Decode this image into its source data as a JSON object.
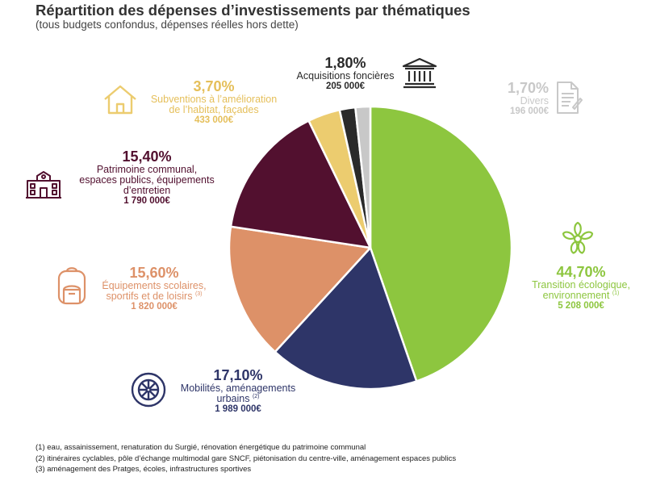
{
  "title": "Répartition des dépenses d’investissements par thématiques",
  "subtitle": "(tous budgets confondus, dépenses réelles hors dette)",
  "chart_data": {
    "type": "pie",
    "start": "top, clockwise",
    "slices": [
      {
        "pct_label": "44,70%",
        "value": 44.7,
        "line1": "Transition écologique,",
        "line2": "environnement",
        "sup": "(1)",
        "amount": "5 208 000€",
        "color": "#8dc63f",
        "icon": "flower-icon"
      },
      {
        "pct_label": "17,10%",
        "value": 17.1,
        "line1": "Mobilités, aménagements",
        "line2": "urbains",
        "sup": "(2)",
        "amount": "1 989 000€",
        "color": "#2e3568",
        "icon": "wheel-icon"
      },
      {
        "pct_label": "15,60%",
        "value": 15.6,
        "line1": "Équipements scolaires,",
        "line2": "sportifs et de loisirs",
        "sup": "(3)",
        "amount": "1 820 000€",
        "color": "#dd9168",
        "icon": "backpack-icon"
      },
      {
        "pct_label": "15,40%",
        "value": 15.4,
        "line1": "Patrimoine communal,",
        "line2": "espaces publics, équipements",
        "line3": "d’entretien",
        "amount": "1 790 000€",
        "color": "#52102f",
        "icon": "town-hall-icon"
      },
      {
        "pct_label": "3,70%",
        "value": 3.7,
        "line1": "Subventions à l’amélioration",
        "line2": "de l’habitat, façades",
        "amount": "433 000€",
        "color": "#eccc6f",
        "icon": "house-icon"
      },
      {
        "pct_label": "1,80%",
        "value": 1.8,
        "line1": "Acquisitions foncières",
        "amount": "205 000€",
        "color": "#2a2a2a",
        "icon": "bank-building-icon"
      },
      {
        "pct_label": "1,70%",
        "value": 1.7,
        "line1": "Divers",
        "amount": "196 000€",
        "color": "#c8c8c8",
        "icon": "document-icon"
      }
    ]
  },
  "footnotes": [
    "(1) eau, assainissement, renaturation du Surgié, rénovation énergétique du patrimoine communal",
    "(2) itinéraires cyclables, pôle d’échange multimodal gare SNCF, piétonisation du centre-ville, aménagement espaces publics",
    "(3) aménagement des Pratges, écoles, infrastructures sportives"
  ]
}
